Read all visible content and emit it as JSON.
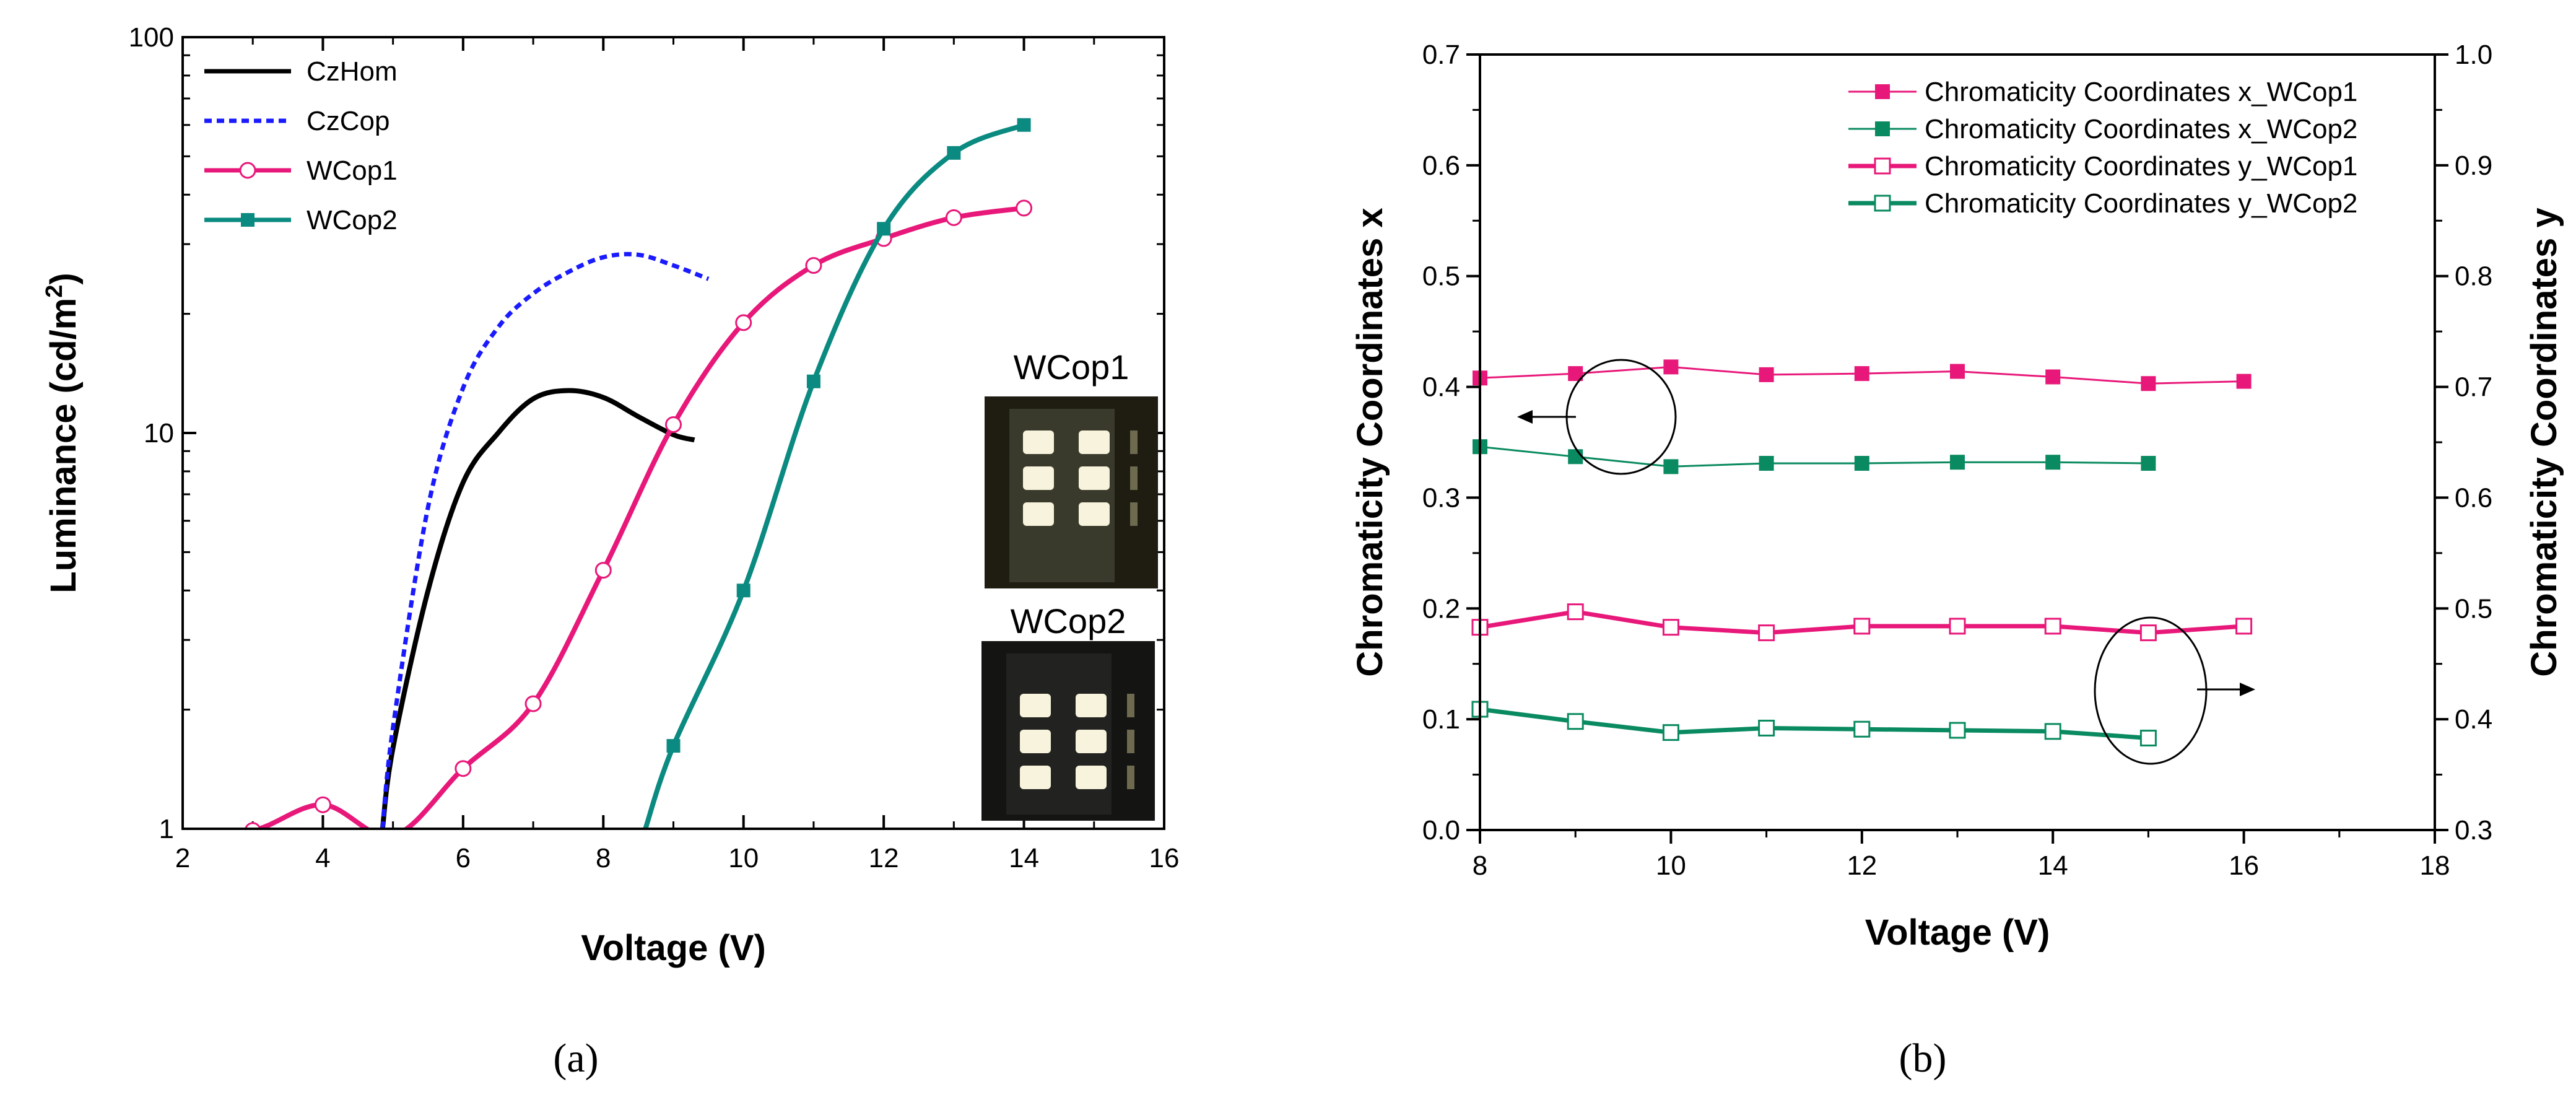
{
  "panels": {
    "a": {
      "caption": "(a)"
    },
    "b": {
      "caption": "(b)"
    }
  },
  "chart_data": [
    {
      "id": "a",
      "type": "line",
      "xlabel": "Voltage (V)",
      "ylabel": "Luminance (cd/m",
      "ylabel_sup": "2",
      "ylabel_end": ")",
      "xlim": [
        2,
        16
      ],
      "ylim": [
        1,
        100
      ],
      "yscale": "log",
      "xticks": [
        "2",
        "4",
        "6",
        "8",
        "10",
        "12",
        "14",
        "16"
      ],
      "yticks": [
        "1",
        "10",
        "100"
      ],
      "legend_position": "top-left",
      "series": [
        {
          "name": "CzHom",
          "color": "#000000",
          "style": "solid",
          "marker": "none",
          "x": [
            4.85,
            5.0,
            5.5,
            6.0,
            6.5,
            7.0,
            7.5,
            8.0,
            8.5,
            9.0,
            9.3
          ],
          "y": [
            1.0,
            1.6,
            4.0,
            7.5,
            10.0,
            12.2,
            12.8,
            12.3,
            11.0,
            9.9,
            9.6
          ]
        },
        {
          "name": "CzCop",
          "color": "#1a1aff",
          "style": "dotted",
          "marker": "none",
          "x": [
            4.85,
            5.0,
            5.5,
            6.0,
            6.5,
            7.0,
            7.5,
            8.0,
            8.5,
            9.0,
            9.5
          ],
          "y": [
            1.0,
            1.8,
            6.5,
            13.0,
            18.5,
            22.5,
            25.5,
            27.8,
            28.2,
            26.5,
            24.5
          ]
        },
        {
          "name": "WCop1",
          "color": "#e8187a",
          "style": "solid",
          "marker": "open-circle",
          "x": [
            2,
            3,
            4,
            5,
            6,
            7,
            8,
            9,
            10,
            11,
            12,
            13,
            14
          ],
          "y": [
            0.98,
            0.99,
            1.15,
            0.96,
            1.42,
            2.07,
            4.5,
            10.5,
            19.0,
            26.5,
            31.0,
            35.0,
            37.0
          ]
        },
        {
          "name": "WCop2",
          "color": "#0a8a80",
          "style": "solid",
          "marker": "filled-square",
          "x": [
            8.6,
            9,
            10,
            11,
            12,
            13,
            14
          ],
          "y": [
            1.0,
            1.62,
            4.0,
            13.5,
            32.8,
            51.0,
            60.0
          ]
        }
      ],
      "insets": [
        {
          "label": "WCop1"
        },
        {
          "label": "WCop2"
        }
      ]
    },
    {
      "id": "b",
      "type": "line",
      "xlabel": "Voltage (V)",
      "ylabel": "Chromaticity Coordinates x",
      "ylabel_right": "Chromaticity Coordinates y",
      "xlim": [
        8,
        18
      ],
      "ylim": [
        0.0,
        0.7
      ],
      "ylim_right": [
        0.3,
        1.0
      ],
      "xticks": [
        "8",
        "10",
        "12",
        "14",
        "16",
        "18"
      ],
      "yticks": [
        "0.0",
        "0.1",
        "0.2",
        "0.3",
        "0.4",
        "0.5",
        "0.6",
        "0.7"
      ],
      "yticks_right": [
        "0.3",
        "0.4",
        "0.5",
        "0.6",
        "0.7",
        "0.8",
        "0.9",
        "1.0"
      ],
      "legend_position": "top-right",
      "series": [
        {
          "name": "Chromaticity Coordinates x_WCop1",
          "axis": "left",
          "color": "#e8187a",
          "marker": "filled-square",
          "line": "thin",
          "x": [
            8,
            9,
            10,
            11,
            12,
            13,
            14,
            15,
            16
          ],
          "y": [
            0.408,
            0.412,
            0.418,
            0.411,
            0.412,
            0.414,
            0.409,
            0.403,
            0.405
          ]
        },
        {
          "name": "Chromaticity Coordinates x_WCop2",
          "axis": "left",
          "color": "#0a8a60",
          "marker": "filled-square",
          "line": "thin",
          "x": [
            8,
            9,
            10,
            11,
            12,
            13,
            14,
            15
          ],
          "y": [
            0.346,
            0.337,
            0.328,
            0.331,
            0.331,
            0.332,
            0.332,
            0.331
          ]
        },
        {
          "name": "Chromaticity Coordinates y_WCop1",
          "axis": "right",
          "color": "#e8187a",
          "marker": "open-square",
          "line": "thick",
          "x": [
            8,
            9,
            10,
            11,
            12,
            13,
            14,
            15,
            16
          ],
          "y": [
            0.483,
            0.497,
            0.483,
            0.478,
            0.484,
            0.484,
            0.484,
            0.478,
            0.484
          ]
        },
        {
          "name": "Chromaticity Coordinates y_WCop2",
          "axis": "right",
          "color": "#0a8a60",
          "marker": "open-square",
          "line": "thick",
          "x": [
            8,
            9,
            10,
            11,
            12,
            13,
            14,
            15
          ],
          "y": [
            0.409,
            0.398,
            0.388,
            0.392,
            0.391,
            0.39,
            0.389,
            0.383
          ]
        }
      ]
    }
  ]
}
